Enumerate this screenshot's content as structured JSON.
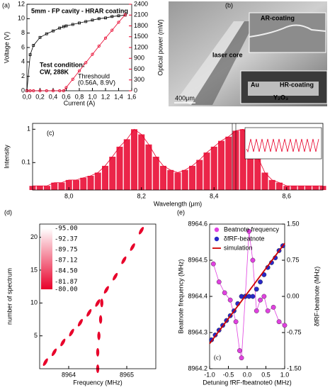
{
  "chart_data": [
    {
      "type": "line",
      "panel_label": "(a)",
      "title": "5mm - FP cavity - HRAR coating",
      "annotations": [
        "Test condition:",
        "CW, 288K"
      ],
      "threshold_label": [
        "Threshould",
        "(0.56A, 8.9V)"
      ],
      "xlabel": "Current (A)",
      "ylabel": "Voltage (V)",
      "y2label": "Optical power (mW)",
      "x": [
        0,
        0.05,
        0.1,
        0.2,
        0.3,
        0.4,
        0.5,
        0.56,
        0.6,
        0.7,
        0.8,
        0.9,
        1.0,
        1.1,
        1.2,
        1.3,
        1.4,
        1.5
      ],
      "series": [
        {
          "color": "#000000",
          "marker": "square",
          "values": [
            0,
            5.0,
            6.3,
            7.4,
            7.9,
            8.3,
            8.7,
            8.9,
            9.0,
            9.2,
            9.4,
            9.6,
            9.8,
            10.0,
            10.1,
            10.3,
            10.4,
            10.5
          ]
        },
        {
          "color": "#e8002a",
          "marker": "circle",
          "axis": "y2",
          "values": [
            0,
            0,
            0,
            0,
            0,
            0,
            0,
            0,
            90,
            320,
            550,
            780,
            1010,
            1240,
            1460,
            1680,
            1900,
            2110
          ]
        }
      ],
      "xlim": [
        0,
        1.6
      ],
      "ylim": [
        0,
        12
      ],
      "y2lim": [
        0,
        2400
      ],
      "xticks": [
        {
          "value": 0,
          "label": "0,0"
        },
        {
          "value": 0.2,
          "label": "0,2"
        },
        {
          "value": 0.4,
          "label": "0,4"
        },
        {
          "value": 0.6,
          "label": "0,6"
        },
        {
          "value": 0.8,
          "label": "0,8"
        },
        {
          "value": 1.0,
          "label": "1,0"
        },
        {
          "value": 1.2,
          "label": "1,2"
        },
        {
          "value": 1.4,
          "label": "1,4"
        },
        {
          "value": 1.6,
          "label": "1,6"
        }
      ],
      "yticks": [
        0,
        2,
        4,
        6,
        8,
        10,
        12
      ],
      "y2ticks": [
        0,
        300,
        600,
        900,
        1200,
        1500,
        1800,
        2100,
        2400
      ]
    },
    {
      "type": "image",
      "panel_label": "(b)",
      "labels": [
        "AR-coating",
        "laser core",
        "Au",
        "HR-coating",
        "Y₂O₃"
      ],
      "scale_bar": "400μm"
    },
    {
      "type": "spectrum",
      "panel_label": "(c)",
      "xlabel": "Wavelength (μm)",
      "ylabel": "Intensity",
      "log_y": true,
      "color": "#e8002a",
      "x": [
        7.9,
        7.92,
        7.94,
        7.96,
        7.98,
        8.0,
        8.02,
        8.04,
        8.06,
        8.08,
        8.1,
        8.12,
        8.14,
        8.16,
        8.18,
        8.2,
        8.22,
        8.24,
        8.26,
        8.28,
        8.3,
        8.32,
        8.34,
        8.36,
        8.38,
        8.4,
        8.42,
        8.44,
        8.46,
        8.48,
        8.5,
        8.52,
        8.54,
        8.56,
        8.58,
        8.6,
        8.62,
        8.64,
        8.66,
        8.68,
        8.7
      ],
      "values": [
        0.02,
        0.02,
        0.02,
        0.025,
        0.025,
        0.03,
        0.03,
        0.035,
        0.04,
        0.05,
        0.08,
        0.15,
        0.3,
        0.5,
        1.0,
        0.7,
        0.35,
        0.15,
        0.08,
        0.06,
        0.05,
        0.06,
        0.08,
        0.12,
        0.2,
        0.3,
        0.45,
        0.6,
        0.9,
        1.0,
        0.5,
        0.15,
        0.05,
        0.03,
        0.025,
        0.02,
        0.02,
        0.02,
        0.02,
        0.02,
        0.02
      ],
      "xlim": [
        7.9,
        8.7
      ],
      "ylim": [
        0.015,
        1.5
      ],
      "xticks": [
        {
          "value": 8.0,
          "label": "8,0"
        },
        {
          "value": 8.2,
          "label": "8,2"
        },
        {
          "value": 8.4,
          "label": "8,4"
        },
        {
          "value": 8.6,
          "label": "8,6"
        }
      ],
      "yticks": [
        0.1,
        1
      ]
    },
    {
      "type": "heatmap",
      "panel_label": "(d)",
      "xlabel": "Frequency (MHz)",
      "ylabel": "number of spectrum",
      "color": "#e8002a",
      "series": [
        {
          "x": [
            8963.6,
            8963.75,
            8963.9,
            8964.05,
            8964.2,
            8964.35,
            8964.5,
            8964.65,
            8964.8,
            8964.95,
            8965.1,
            8965.25
          ],
          "values": [
            1,
            2.5,
            4,
            5.5,
            7,
            8.5,
            10,
            12,
            14,
            16.5,
            18.5,
            21
          ]
        },
        {
          "x": [
            8964.5,
            8964.5,
            8964.52,
            8964.55,
            8964.57
          ],
          "values": [
            0,
            2.5,
            5,
            7.5,
            10
          ]
        }
      ],
      "xlim": [
        8963.5,
        8965.5
      ],
      "ylim": [
        0,
        22
      ],
      "xticks": [
        8964,
        8965
      ],
      "yticks": [
        5,
        10,
        15,
        20
      ],
      "colorbar": {
        "ticks": [
          {
            "value": -95,
            "label": "-95.00"
          },
          {
            "value": -92.37,
            "label": "-92.37"
          },
          {
            "value": -89.75,
            "label": "-89.75"
          },
          {
            "value": -87.12,
            "label": "-87.12"
          },
          {
            "value": -84.5,
            "label": "-84.50"
          },
          {
            "value": -81.87,
            "label": "-81.87"
          },
          {
            "value": -80,
            "label": "-80.00"
          }
        ]
      }
    },
    {
      "type": "scatter",
      "panel_label": "(e)",
      "annotation": "(c)",
      "legend": "upper left",
      "xlabel": "Detuning fRF-fbeatnote0 (MHz)",
      "ylabel": "Beatnote frequency (MHz)",
      "y2label": "δfRF-beatnote (MHz)",
      "series": [
        {
          "name": "Beatnote frequency",
          "color": "#e040e0",
          "style": "line-marker",
          "x": [
            -0.9,
            -0.75,
            -0.6,
            -0.45,
            -0.3,
            -0.2,
            -0.15,
            -0.05,
            0.05,
            0.15,
            0.25,
            0.35,
            0.45,
            0.55,
            0.7,
            0.85,
            1.0
          ],
          "values": [
            8964.49,
            8964.44,
            8964.41,
            8964.39,
            8964.33,
            8964.25,
            8964.23,
            8964.4,
            8964.58,
            8964.5,
            8964.36,
            8964.39,
            8964.4,
            8964.36,
            8964.37,
            8964.33,
            8964.32
          ]
        },
        {
          "name": "δfRF-beatnote",
          "color": "#2828c8",
          "style": "marker",
          "axis": "y2",
          "x": [
            -0.95,
            -0.85,
            -0.75,
            -0.65,
            -0.55,
            -0.45,
            -0.35,
            -0.25,
            -0.15,
            -0.05,
            0.05,
            0.15,
            0.25,
            0.35,
            0.45,
            0.55,
            0.65,
            0.75,
            0.85,
            0.95
          ],
          "values": [
            -0.9,
            -0.8,
            -0.7,
            -0.6,
            -0.5,
            -0.4,
            -0.3,
            -0.15,
            0,
            0,
            0,
            0,
            0.15,
            0.3,
            0.45,
            0.6,
            0.7,
            0.8,
            0.95,
            1.05
          ]
        },
        {
          "name": "simulation",
          "color": "#d00000",
          "style": "line",
          "axis": "y2",
          "x": [
            -1,
            1
          ],
          "values": [
            -0.98,
            1.1
          ]
        }
      ],
      "xlim": [
        -1,
        1
      ],
      "ylim": [
        8964.2,
        8964.6
      ],
      "y2lim": [
        -1.5,
        1.5
      ],
      "xticks": [
        {
          "value": -1,
          "label": "-1.0"
        },
        -0.5,
        {
          "value": 0,
          "label": "0.0"
        },
        0.5,
        {
          "value": 1,
          "label": "1.0"
        }
      ],
      "yticks": [
        8964.2,
        8964.3,
        8964.4,
        8964.5,
        8964.6
      ],
      "y2ticks": [
        {
          "value": -1.5,
          "label": "-1.50"
        },
        {
          "value": -0.75,
          "label": "-0.75"
        },
        {
          "value": 0,
          "label": "0.00"
        },
        {
          "value": 0.75,
          "label": "0.75"
        },
        {
          "value": 1.5,
          "label": "1.50"
        }
      ]
    }
  ]
}
